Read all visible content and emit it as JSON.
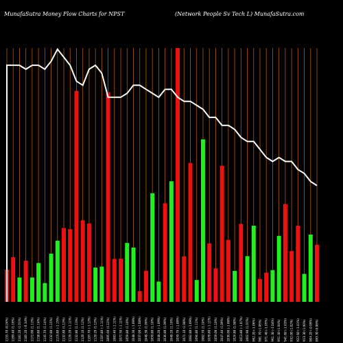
{
  "chart_data": {
    "type": "bar",
    "title_left": "MunafaSutra  Money Flow  Charts for NPST",
    "title_right": "(Network People    Sv    Tech L) MunafaSutra.com",
    "colors": {
      "background": "#000000",
      "up": "#22ee22",
      "down": "#ee1111",
      "grid": "#b85c00",
      "line": "#ffffff"
    },
    "categories": [
      "1155.70 (0.24%)",
      "1169.40 (1.16%)",
      "1181.20 (1.01%)",
      "1185.20 (-0.34%)",
      "1172.00 (1.11%)",
      "1158.80 (1.14%)",
      "1145.70 (1.14%)",
      "1132.80 (1.15%)",
      "1119.80 (-1.15%)",
      "1132.80 (1.13%)",
      "1120.20 (-1.11%)",
      "1132.80 (1.13%)",
      "1120.10 (1.12%)",
      "1107.70 (-1.12%)",
      "1120.20 (1.13%)",
      "1107.80 (-1.11%)",
      "1095.60 (1.12%)",
      "1083.40 (-1.11%)",
      "1071.50 (-1.11%)",
      "1059.80 (1.10%)",
      "1048.30 (-1.09%)",
      "1037.00 (-1.08%)",
      "1048.30 (1.09%)",
      "1059.80 (1.10%)",
      "1048.20 (-1.09%)",
      "1036.80 (1.09%)",
      "1048.20 (1.10%)",
      "1059.70 (-1.08%)",
      "1071.10 (1.08%)",
      "1082.80 (-1.09%)",
      "1094.80 (1.11%)",
      "1082.70 (1.10%)",
      "1070.80 (-1.11%)",
      "1059.00 (1.10%)",
      "1047.40 (1.09%)",
      "1036.00 (-1.08%)",
      "1024.80 (1.08%)",
      "1013.80 (-1.07%)",
      "1002.90 (1.07%)",
      "992.20 (-1.06%)",
      "981.70 (1.06%)",
      "971.40 (-1.05%)",
      "961.30 (-1.04%)",
      "951.40 (1.04%)",
      "941.60 (-1.03%)",
      "932.00 (1.02%)",
      "922.60 (-1.01%)",
      "913.30 (1.00%)",
      "904.20 (-0.99%)",
      "895.30 (0.98%)"
    ],
    "values": [
      45,
      35,
      28,
      33,
      27,
      39,
      29,
      51,
      58,
      68,
      66,
      71,
      100,
      76,
      74,
      50,
      46,
      54,
      33,
      35,
      44,
      46,
      60,
      55,
      16,
      43,
      33,
      41,
      27,
      59,
      74,
      53,
      79,
      58,
      55,
      42,
      62,
      52,
      58,
      31,
      45,
      48,
      36,
      67,
      37,
      31,
      40,
      33,
      29,
      46
    ],
    "directions": [
      "down",
      "down",
      "up",
      "down",
      "up",
      "up",
      "up",
      "up",
      "up",
      "down",
      "down",
      "down",
      "down",
      "down",
      "up",
      "up",
      "down",
      "down",
      "down",
      "up",
      "up",
      "down",
      "down",
      "up",
      "up",
      "down",
      "up",
      "down",
      "down",
      "down",
      "up",
      "up",
      "down",
      "down",
      "down",
      "down",
      "up",
      "down",
      "up",
      "up",
      "down",
      "down",
      "up",
      "up",
      "down",
      "down",
      "down",
      "up",
      "up",
      "down"
    ],
    "bar_heights": [
      12.7,
      17.6,
      9.6,
      16.2,
      9.6,
      15.3,
      7.4,
      19.0,
      24.1,
      29.1,
      28.6,
      83.1,
      32.1,
      30.9,
      13.5,
      13.9,
      82.6,
      16.9,
      17.0,
      23.2,
      21.4,
      4.2,
      12.2,
      42.8,
      8.0,
      38.8,
      47.5,
      100.0,
      17.9,
      54.7,
      8.6,
      64.0,
      23.0,
      13.2,
      53.6,
      24.4,
      12.2,
      30.7,
      18.0,
      30.0,
      9.0,
      11.5,
      12.5,
      26.0,
      38.5,
      20.0,
      30.0,
      11.0,
      26.5,
      22.5
    ],
    "line_values": [
      99,
      99,
      99,
      98,
      99,
      99,
      98,
      100,
      103,
      101,
      99,
      95,
      94,
      98,
      99,
      97,
      91,
      91,
      91,
      92,
      94,
      94,
      93,
      92,
      91,
      93,
      93,
      91,
      90,
      90,
      89,
      88,
      86,
      86,
      84,
      84,
      83,
      81,
      80,
      80,
      78,
      76,
      75,
      76,
      75,
      75,
      73,
      72,
      70,
      69
    ],
    "ylim": [
      0,
      100
    ]
  }
}
